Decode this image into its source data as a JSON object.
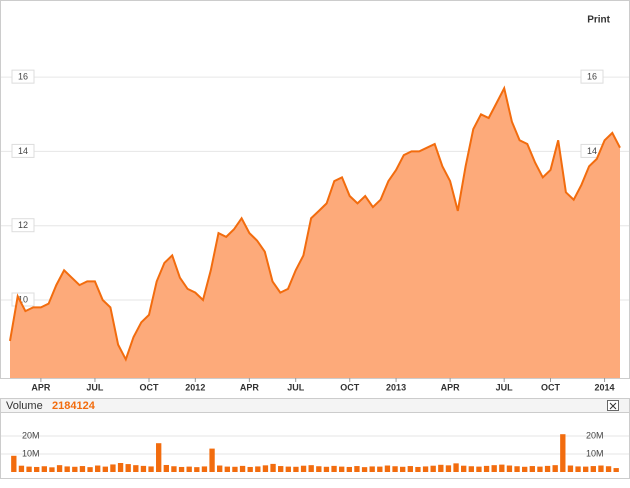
{
  "print_button": "Print",
  "chart_data": [
    {
      "type": "area",
      "color": "#f26c0e",
      "fill": "#fdaa7a",
      "grid": true,
      "categories": [
        null,
        null,
        null,
        null,
        "APR",
        null,
        null,
        null,
        null,
        null,
        null,
        "JUL",
        null,
        null,
        null,
        null,
        null,
        null,
        "OCT",
        null,
        null,
        null,
        null,
        null,
        "2012",
        null,
        null,
        null,
        null,
        null,
        null,
        "APR",
        null,
        null,
        null,
        null,
        null,
        "JUL",
        null,
        null,
        null,
        null,
        null,
        null,
        "OCT",
        null,
        null,
        null,
        null,
        null,
        "2013",
        null,
        null,
        null,
        null,
        null,
        null,
        "APR",
        null,
        null,
        null,
        null,
        null,
        null,
        "JUL",
        null,
        null,
        null,
        null,
        null,
        "OCT",
        null,
        null,
        null,
        null,
        null,
        null,
        "2014",
        null,
        null
      ],
      "values": [
        8.9,
        10.1,
        9.7,
        9.8,
        9.8,
        9.9,
        10.4,
        10.8,
        10.6,
        10.4,
        10.5,
        10.5,
        10.0,
        9.8,
        8.8,
        8.4,
        9.0,
        9.4,
        9.6,
        10.5,
        11.0,
        11.2,
        10.6,
        10.3,
        10.2,
        10.0,
        10.8,
        11.8,
        11.7,
        11.9,
        12.2,
        11.8,
        11.6,
        11.3,
        10.5,
        10.2,
        10.3,
        10.8,
        11.2,
        12.2,
        12.4,
        12.6,
        13.2,
        13.3,
        12.8,
        12.6,
        12.8,
        12.5,
        12.7,
        13.2,
        13.5,
        13.9,
        14.0,
        14.0,
        14.1,
        14.2,
        13.6,
        13.2,
        12.4,
        13.6,
        14.6,
        15.0,
        14.9,
        15.3,
        15.7,
        14.8,
        14.3,
        14.2,
        13.7,
        13.3,
        13.5,
        14.3,
        12.9,
        12.7,
        13.1,
        13.6,
        13.8,
        14.3,
        14.5,
        14.1
      ],
      "ylim": [
        7.9,
        18.05
      ],
      "yticks": [
        10,
        12,
        14,
        16
      ]
    },
    {
      "type": "bar",
      "title": "Volume",
      "current": 2184124,
      "color": "#f26c0e",
      "grid": true,
      "values": [
        9000000,
        3500000,
        3000000,
        2800000,
        3200000,
        2600000,
        3800000,
        3100000,
        2900000,
        3300000,
        2700000,
        3600000,
        3000000,
        4200000,
        5000000,
        4400000,
        3800000,
        3400000,
        3100000,
        16000000,
        3900000,
        3200000,
        2800000,
        3000000,
        2700000,
        3100000,
        13000000,
        3600000,
        3000000,
        2900000,
        3400000,
        2800000,
        3100000,
        3700000,
        4500000,
        3300000,
        3000000,
        2900000,
        3500000,
        3800000,
        3200000,
        2900000,
        3400000,
        3000000,
        2800000,
        3300000,
        2700000,
        3100000,
        3000000,
        3600000,
        3200000,
        2900000,
        3300000,
        2800000,
        3100000,
        3500000,
        4000000,
        3700000,
        4800000,
        3500000,
        3200000,
        3000000,
        3400000,
        3800000,
        4100000,
        3600000,
        3200000,
        2900000,
        3300000,
        3000000,
        3400000,
        3800000,
        21000000,
        3600000,
        3100000,
        3000000,
        3300000,
        3600000,
        3200000,
        2184124
      ],
      "ylim": [
        0,
        30000000
      ],
      "yticks": [
        {
          "value": 10000000,
          "label": "10M"
        },
        {
          "value": 20000000,
          "label": "20M"
        }
      ]
    }
  ]
}
